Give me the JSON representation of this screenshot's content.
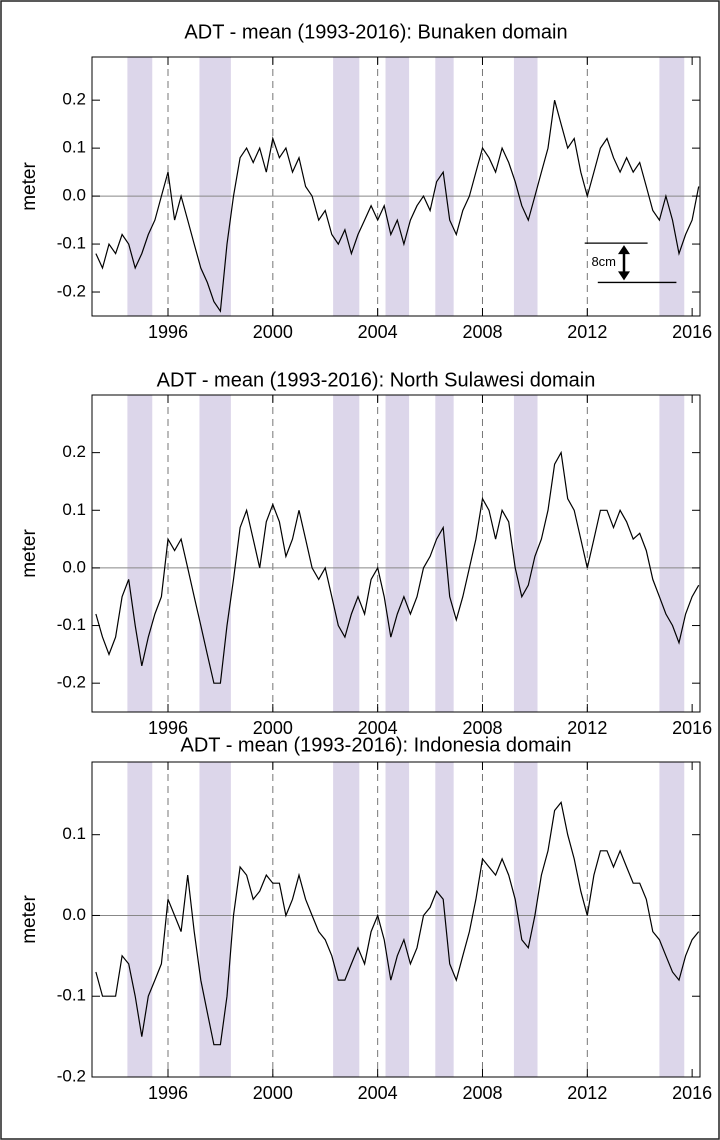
{
  "chart_data": [
    {
      "type": "line",
      "title": "ADT - mean (1993-2016): Bunaken domain",
      "ylabel": "meter",
      "color": "#000000",
      "shade_color": "#dcd6ea",
      "x": [
        1993.25,
        1993.5,
        1993.75,
        1994,
        1994.25,
        1994.5,
        1994.75,
        1995,
        1995.25,
        1995.5,
        1995.75,
        1996,
        1996.25,
        1996.5,
        1996.75,
        1997,
        1997.25,
        1997.5,
        1997.75,
        1998,
        1998.25,
        1998.5,
        1998.75,
        1999,
        1999.25,
        1999.5,
        1999.75,
        2000,
        2000.25,
        2000.5,
        2000.75,
        2001,
        2001.25,
        2001.5,
        2001.75,
        2002,
        2002.25,
        2002.5,
        2002.75,
        2003,
        2003.25,
        2003.5,
        2003.75,
        2004,
        2004.25,
        2004.5,
        2004.75,
        2005,
        2005.25,
        2005.5,
        2005.75,
        2006,
        2006.25,
        2006.5,
        2006.75,
        2007,
        2007.25,
        2007.5,
        2007.75,
        2008,
        2008.25,
        2008.5,
        2008.75,
        2009,
        2009.25,
        2009.5,
        2009.75,
        2010,
        2010.25,
        2010.5,
        2010.75,
        2011,
        2011.25,
        2011.5,
        2011.75,
        2012,
        2012.25,
        2012.5,
        2012.75,
        2013,
        2013.25,
        2013.5,
        2013.75,
        2014,
        2014.25,
        2014.5,
        2014.75,
        2015,
        2015.25,
        2015.5,
        2015.75,
        2016,
        2016.25
      ],
      "values": [
        -0.12,
        -0.15,
        -0.1,
        -0.12,
        -0.08,
        -0.1,
        -0.15,
        -0.12,
        -0.08,
        -0.05,
        0.0,
        0.05,
        -0.05,
        0.0,
        -0.05,
        -0.1,
        -0.15,
        -0.18,
        -0.22,
        -0.24,
        -0.1,
        0.0,
        0.08,
        0.1,
        0.07,
        0.1,
        0.05,
        0.12,
        0.08,
        0.1,
        0.05,
        0.08,
        0.02,
        0.0,
        -0.05,
        -0.03,
        -0.08,
        -0.1,
        -0.07,
        -0.12,
        -0.08,
        -0.05,
        -0.02,
        -0.05,
        -0.02,
        -0.08,
        -0.05,
        -0.1,
        -0.05,
        -0.02,
        0.0,
        -0.03,
        0.03,
        0.05,
        -0.05,
        -0.08,
        -0.03,
        0.0,
        0.05,
        0.1,
        0.08,
        0.05,
        0.1,
        0.07,
        0.03,
        -0.02,
        -0.05,
        0.0,
        0.05,
        0.1,
        0.2,
        0.15,
        0.1,
        0.12,
        0.05,
        0.0,
        0.05,
        0.1,
        0.12,
        0.08,
        0.05,
        0.08,
        0.05,
        0.07,
        0.02,
        -0.03,
        -0.05,
        0.0,
        -0.05,
        -0.12,
        -0.08,
        -0.05,
        0.02
      ],
      "xlim": [
        1993.1,
        2016.3
      ],
      "xticks": [
        1996,
        2000,
        2004,
        2008,
        2012,
        2016
      ],
      "ylim": [
        -0.25,
        0.29
      ],
      "yticks": [
        -0.2,
        -0.1,
        {
          "value": 0,
          "label": "0.0"
        },
        0.1,
        0.2
      ],
      "hline": 0,
      "vlines": [
        1996,
        2000,
        2004,
        2008,
        2012
      ],
      "shaded": [
        [
          1994.45,
          1995.4
        ],
        [
          1997.2,
          1998.4
        ],
        [
          2002.3,
          2003.3
        ],
        [
          2004.3,
          2005.2
        ],
        [
          2006.2,
          2006.9
        ],
        [
          2009.2,
          2010.1
        ],
        [
          2014.75,
          2015.7
        ]
      ],
      "annotation": {
        "text": "8cm",
        "x": 2013.4,
        "upper": {
          "x": [
            2011.9,
            2014.3
          ],
          "y": -0.098
        },
        "lower": {
          "x": [
            2012.4,
            2015.4
          ],
          "y": -0.18
        }
      }
    },
    {
      "type": "line",
      "title": "ADT - mean (1993-2016): North Sulawesi domain",
      "ylabel": "meter",
      "color": "#000000",
      "shade_color": "#dcd6ea",
      "x": [
        1993.25,
        1993.5,
        1993.75,
        1994,
        1994.25,
        1994.5,
        1994.75,
        1995,
        1995.25,
        1995.5,
        1995.75,
        1996,
        1996.25,
        1996.5,
        1996.75,
        1997,
        1997.25,
        1997.5,
        1997.75,
        1998,
        1998.25,
        1998.5,
        1998.75,
        1999,
        1999.25,
        1999.5,
        1999.75,
        2000,
        2000.25,
        2000.5,
        2000.75,
        2001,
        2001.25,
        2001.5,
        2001.75,
        2002,
        2002.25,
        2002.5,
        2002.75,
        2003,
        2003.25,
        2003.5,
        2003.75,
        2004,
        2004.25,
        2004.5,
        2004.75,
        2005,
        2005.25,
        2005.5,
        2005.75,
        2006,
        2006.25,
        2006.5,
        2006.75,
        2007,
        2007.25,
        2007.5,
        2007.75,
        2008,
        2008.25,
        2008.5,
        2008.75,
        2009,
        2009.25,
        2009.5,
        2009.75,
        2010,
        2010.25,
        2010.5,
        2010.75,
        2011,
        2011.25,
        2011.5,
        2011.75,
        2012,
        2012.25,
        2012.5,
        2012.75,
        2013,
        2013.25,
        2013.5,
        2013.75,
        2014,
        2014.25,
        2014.5,
        2014.75,
        2015,
        2015.25,
        2015.5,
        2015.75,
        2016,
        2016.25
      ],
      "values": [
        -0.08,
        -0.12,
        -0.15,
        -0.12,
        -0.05,
        -0.02,
        -0.1,
        -0.17,
        -0.12,
        -0.08,
        -0.05,
        0.05,
        0.03,
        0.05,
        0.0,
        -0.05,
        -0.1,
        -0.15,
        -0.2,
        -0.2,
        -0.1,
        -0.02,
        0.07,
        0.1,
        0.05,
        0.0,
        0.08,
        0.11,
        0.08,
        0.02,
        0.05,
        0.1,
        0.05,
        0.0,
        -0.02,
        0.0,
        -0.05,
        -0.1,
        -0.12,
        -0.08,
        -0.05,
        -0.08,
        -0.02,
        0.0,
        -0.05,
        -0.12,
        -0.08,
        -0.05,
        -0.08,
        -0.05,
        0.0,
        0.02,
        0.05,
        0.07,
        -0.05,
        -0.09,
        -0.05,
        0.0,
        0.05,
        0.12,
        0.1,
        0.05,
        0.1,
        0.08,
        0.0,
        -0.05,
        -0.03,
        0.02,
        0.05,
        0.1,
        0.18,
        0.2,
        0.12,
        0.1,
        0.05,
        0.0,
        0.05,
        0.1,
        0.1,
        0.07,
        0.1,
        0.08,
        0.05,
        0.06,
        0.03,
        -0.02,
        -0.05,
        -0.08,
        -0.1,
        -0.13,
        -0.08,
        -0.05,
        -0.03
      ],
      "xlim": [
        1993.1,
        2016.3
      ],
      "xticks": [
        1996,
        2000,
        2004,
        2008,
        2012,
        2016
      ],
      "ylim": [
        -0.25,
        0.3
      ],
      "yticks": [
        -0.2,
        -0.1,
        {
          "value": 0,
          "label": "0.0"
        },
        0.1,
        0.2
      ],
      "hline": 0,
      "vlines": [
        1996,
        2000,
        2004,
        2008,
        2012
      ],
      "shaded": [
        [
          1994.45,
          1995.4
        ],
        [
          1997.2,
          1998.4
        ],
        [
          2002.3,
          2003.3
        ],
        [
          2004.3,
          2005.2
        ],
        [
          2006.2,
          2006.9
        ],
        [
          2009.2,
          2010.1
        ],
        [
          2014.75,
          2015.7
        ]
      ]
    },
    {
      "type": "line",
      "title": "ADT - mean (1993-2016): Indonesia domain",
      "ylabel": "meter",
      "color": "#000000",
      "shade_color": "#dcd6ea",
      "x": [
        1993.25,
        1993.5,
        1993.75,
        1994,
        1994.25,
        1994.5,
        1994.75,
        1995,
        1995.25,
        1995.5,
        1995.75,
        1996,
        1996.25,
        1996.5,
        1996.75,
        1997,
        1997.25,
        1997.5,
        1997.75,
        1998,
        1998.25,
        1998.5,
        1998.75,
        1999,
        1999.25,
        1999.5,
        1999.75,
        2000,
        2000.25,
        2000.5,
        2000.75,
        2001,
        2001.25,
        2001.5,
        2001.75,
        2002,
        2002.25,
        2002.5,
        2002.75,
        2003,
        2003.25,
        2003.5,
        2003.75,
        2004,
        2004.25,
        2004.5,
        2004.75,
        2005,
        2005.25,
        2005.5,
        2005.75,
        2006,
        2006.25,
        2006.5,
        2006.75,
        2007,
        2007.25,
        2007.5,
        2007.75,
        2008,
        2008.25,
        2008.5,
        2008.75,
        2009,
        2009.25,
        2009.5,
        2009.75,
        2010,
        2010.25,
        2010.5,
        2010.75,
        2011,
        2011.25,
        2011.5,
        2011.75,
        2012,
        2012.25,
        2012.5,
        2012.75,
        2013,
        2013.25,
        2013.5,
        2013.75,
        2014,
        2014.25,
        2014.5,
        2014.75,
        2015,
        2015.25,
        2015.5,
        2015.75,
        2016,
        2016.25
      ],
      "values": [
        -0.07,
        -0.1,
        -0.1,
        -0.1,
        -0.05,
        -0.06,
        -0.1,
        -0.15,
        -0.1,
        -0.08,
        -0.06,
        0.02,
        0.0,
        -0.02,
        0.05,
        -0.02,
        -0.08,
        -0.12,
        -0.16,
        -0.16,
        -0.1,
        0.0,
        0.06,
        0.05,
        0.02,
        0.03,
        0.05,
        0.04,
        0.04,
        0.0,
        0.02,
        0.05,
        0.02,
        0.0,
        -0.02,
        -0.03,
        -0.05,
        -0.08,
        -0.08,
        -0.06,
        -0.04,
        -0.06,
        -0.02,
        0.0,
        -0.03,
        -0.08,
        -0.05,
        -0.03,
        -0.06,
        -0.04,
        0.0,
        0.01,
        0.03,
        0.02,
        -0.06,
        -0.08,
        -0.05,
        -0.02,
        0.02,
        0.07,
        0.06,
        0.05,
        0.07,
        0.05,
        0.02,
        -0.03,
        -0.04,
        0.0,
        0.05,
        0.08,
        0.13,
        0.14,
        0.1,
        0.07,
        0.03,
        0.0,
        0.05,
        0.08,
        0.08,
        0.06,
        0.08,
        0.06,
        0.04,
        0.04,
        0.02,
        -0.02,
        -0.03,
        -0.05,
        -0.07,
        -0.08,
        -0.05,
        -0.03,
        -0.02
      ],
      "xlim": [
        1993.1,
        2016.3
      ],
      "xticks": [
        1996,
        2000,
        2004,
        2008,
        2012,
        2016
      ],
      "ylim": [
        -0.2,
        0.19
      ],
      "yticks": [
        -0.2,
        -0.1,
        {
          "value": 0,
          "label": "0.0"
        },
        0.1
      ],
      "hline": 0,
      "vlines": [
        1996,
        2000,
        2004,
        2008,
        2012
      ],
      "shaded": [
        [
          1994.45,
          1995.4
        ],
        [
          1997.2,
          1998.4
        ],
        [
          2002.3,
          2003.3
        ],
        [
          2004.3,
          2005.2
        ],
        [
          2006.2,
          2006.9
        ],
        [
          2009.2,
          2010.1
        ],
        [
          2014.75,
          2015.7
        ]
      ]
    }
  ]
}
